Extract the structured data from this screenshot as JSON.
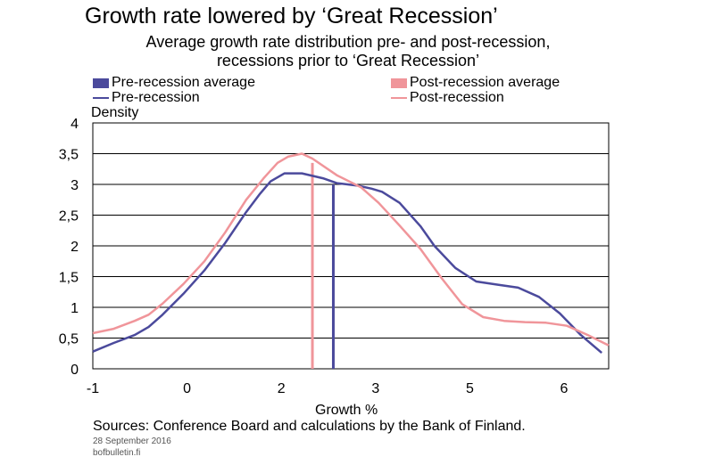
{
  "chart_data": {
    "type": "line",
    "title": "Growth rate lowered by ‘Great Recession’",
    "subtitle_line1": "Average growth rate distribution pre- and post-recession,",
    "subtitle_line2": "recessions prior to ‘Great Recession’",
    "xlabel": "Growth %",
    "ylabel": "Density",
    "xlim": [
      -1,
      6.4
    ],
    "ylim": [
      0,
      4
    ],
    "x_ticks": [
      "-1",
      "0",
      "2",
      "3",
      "5",
      "6"
    ],
    "y_ticks": [
      "0",
      "0,5",
      "1",
      "1,5",
      "2",
      "2,5",
      "3",
      "3,5",
      "4"
    ],
    "grid": "horizontal",
    "legend": {
      "placement": "top",
      "items": [
        {
          "label": "Pre-recession average",
          "kind": "bar",
          "color": "#4B4A9C"
        },
        {
          "label": "Post-recession average",
          "kind": "bar",
          "color": "#F0959A"
        },
        {
          "label": "Pre-recession",
          "kind": "line",
          "color": "#4B4A9C"
        },
        {
          "label": "Post-recession",
          "kind": "line",
          "color": "#F0959A"
        }
      ]
    },
    "series": [
      {
        "name": "Pre-recession",
        "color": "#4B4A9C",
        "x": [
          -1.0,
          -0.7,
          -0.4,
          -0.2,
          0.0,
          0.3,
          0.6,
          0.9,
          1.2,
          1.4,
          1.55,
          1.75,
          2.0,
          2.3,
          2.5,
          2.8,
          3.0,
          3.15,
          3.4,
          3.7,
          3.9,
          4.2,
          4.5,
          4.8,
          5.1,
          5.4,
          5.7,
          6.0,
          6.3
        ],
        "y": [
          0.28,
          0.42,
          0.55,
          0.68,
          0.88,
          1.22,
          1.6,
          2.05,
          2.55,
          2.85,
          3.05,
          3.18,
          3.18,
          3.1,
          3.02,
          2.98,
          2.93,
          2.88,
          2.7,
          2.32,
          2.0,
          1.64,
          1.42,
          1.37,
          1.32,
          1.17,
          0.9,
          0.55,
          0.26
        ]
      },
      {
        "name": "Post-recession",
        "color": "#F0959A",
        "x": [
          -1.0,
          -0.7,
          -0.4,
          -0.2,
          0.0,
          0.3,
          0.6,
          0.9,
          1.2,
          1.45,
          1.65,
          1.8,
          2.0,
          2.15,
          2.5,
          2.85,
          3.1,
          3.4,
          3.7,
          4.0,
          4.3,
          4.6,
          4.9,
          5.2,
          5.5,
          5.8,
          6.1,
          6.4
        ],
        "y": [
          0.58,
          0.65,
          0.78,
          0.88,
          1.06,
          1.38,
          1.75,
          2.22,
          2.75,
          3.1,
          3.35,
          3.45,
          3.5,
          3.42,
          3.15,
          2.95,
          2.7,
          2.33,
          1.95,
          1.48,
          1.05,
          0.84,
          0.78,
          0.76,
          0.75,
          0.7,
          0.55,
          0.38
        ]
      }
    ],
    "averages": [
      {
        "name": "Pre-recession average",
        "x": 2.45,
        "height": 3.0,
        "color": "#4B4A9C"
      },
      {
        "name": "Post-recession average",
        "x": 2.15,
        "height": 3.35,
        "color": "#F0959A"
      }
    ]
  },
  "footer": {
    "sources": "Sources: Conference Board and calculations by the Bank of Finland.",
    "date": "28 September 2016",
    "site": "bofbulletin.fi"
  }
}
